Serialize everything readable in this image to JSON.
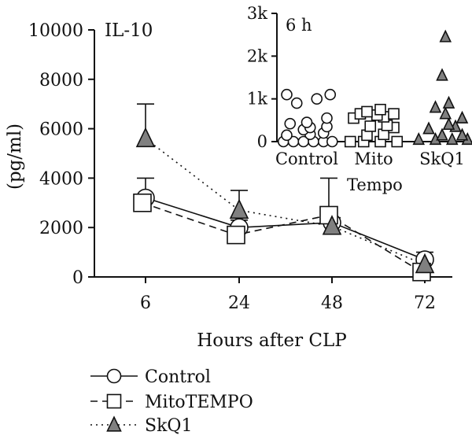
{
  "chart_data": [
    {
      "type": "line",
      "title": "IL-10",
      "xlabel": "Hours after CLP",
      "ylabel": "(pg/ml)",
      "categories": [
        "6",
        "24",
        "48",
        "72"
      ],
      "yticks": [
        "0",
        "2000",
        "4000",
        "6000",
        "8000",
        "10000"
      ],
      "ylim": [
        0,
        10000
      ],
      "colors": {
        "skq1_fill": "#808080",
        "line": "#111111"
      },
      "legend_position": "bottom-left",
      "series": [
        {
          "name": "Control",
          "marker": "circle",
          "line": "solid",
          "values": [
            3200,
            2000,
            2200,
            700
          ],
          "error_plus": [
            800,
            300,
            200,
            300
          ]
        },
        {
          "name": "MitoTEMPO",
          "marker": "square",
          "line": "dashed",
          "values": [
            3000,
            1700,
            2500,
            200
          ],
          "error_plus": [
            0,
            0,
            1500,
            0
          ]
        },
        {
          "name": "SkQ1",
          "marker": "triangle",
          "line": "dotted",
          "values": [
            5600,
            2700,
            2050,
            500
          ],
          "error_plus": [
            1400,
            800,
            0,
            0
          ]
        }
      ]
    },
    {
      "type": "scatter",
      "title": "6 h",
      "categories": [
        "Control",
        "Mito Tempo",
        "SkQ1"
      ],
      "category_lines": [
        [
          "Control"
        ],
        [
          "Mito",
          "Tempo"
        ],
        [
          "SkQ1"
        ]
      ],
      "yticks": [
        "0",
        "1k",
        "2k",
        "3k"
      ],
      "ylim": [
        0,
        3000
      ],
      "series": [
        {
          "name": "Control",
          "marker": "circle",
          "points": [
            [
              -0.35,
              0
            ],
            [
              -0.2,
              0
            ],
            [
              -0.05,
              0
            ],
            [
              0.1,
              0
            ],
            [
              0.25,
              0
            ],
            [
              0.38,
              0
            ],
            [
              -0.3,
              150
            ],
            [
              0.05,
              170
            ],
            [
              0.25,
              200
            ],
            [
              -0.05,
              280
            ],
            [
              0.05,
              330
            ],
            [
              0.3,
              350
            ],
            [
              -0.25,
              420
            ],
            [
              0.0,
              450
            ],
            [
              0.3,
              550
            ],
            [
              -0.15,
              900
            ],
            [
              0.15,
              1000
            ],
            [
              -0.3,
              1100
            ],
            [
              0.35,
              1100
            ]
          ]
        },
        {
          "name": "MitoTEMPO",
          "marker": "square",
          "points": [
            [
              -0.35,
              0
            ],
            [
              -0.15,
              0
            ],
            [
              0.1,
              0
            ],
            [
              0.35,
              0
            ],
            [
              -0.1,
              150
            ],
            [
              0.15,
              170
            ],
            [
              0.3,
              330
            ],
            [
              -0.05,
              360
            ],
            [
              0.2,
              380
            ],
            [
              -0.3,
              550
            ],
            [
              0.15,
              580
            ],
            [
              -0.2,
              650
            ],
            [
              0.05,
              620
            ],
            [
              0.3,
              650
            ],
            [
              -0.1,
              700
            ],
            [
              0.1,
              750
            ]
          ]
        },
        {
          "name": "SkQ1",
          "marker": "triangle",
          "points": [
            [
              -0.35,
              50
            ],
            [
              -0.1,
              50
            ],
            [
              0.15,
              50
            ],
            [
              0.38,
              50
            ],
            [
              0.0,
              150
            ],
            [
              0.3,
              150
            ],
            [
              -0.2,
              300
            ],
            [
              0.2,
              350
            ],
            [
              0.1,
              400
            ],
            [
              0.3,
              550
            ],
            [
              0.05,
              650
            ],
            [
              -0.1,
              800
            ],
            [
              0.1,
              900
            ],
            [
              0.0,
              1550
            ],
            [
              0.05,
              2450
            ]
          ]
        }
      ]
    }
  ]
}
